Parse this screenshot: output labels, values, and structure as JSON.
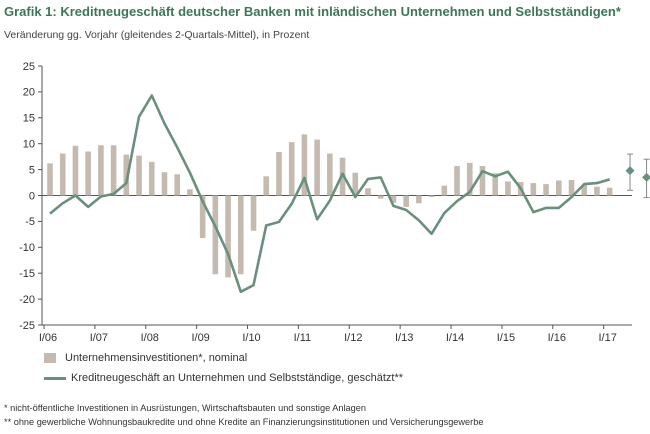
{
  "title": "Grafik 1: Kreditneugeschäft deutscher Banken mit inländischen Unternehmen und Selbstständigen*",
  "subtitle": "Veränderung gg. Vorjahr (gleitendes 2-Quartals-Mittel), in Prozent",
  "legend": {
    "bar_label": "Unternehmensinvestitionen*, nominal",
    "line_label": "Kreditneugeschäft an Unternehmen und Selbstständige, geschätzt**"
  },
  "footnotes": [
    "* nicht-öffentliche Investitionen in Ausrüstungen, Wirtschaftsbauten und sonstige Anlagen",
    "** ohne gewerbliche Wohnungsbaukredite und ohne Kredite an Finanzierungsinstitutionen und Versicherungsgewerbe"
  ],
  "colors": {
    "title": "#3f7558",
    "bar": "#c4bab0",
    "line": "#6a8f7d",
    "forecast_marker": "#6a8f7d",
    "error_bar": "#888888",
    "axis": "#555555"
  },
  "chart_data": {
    "type": "bar+line",
    "ylim": [
      -25,
      25
    ],
    "yticks": [
      -25,
      -20,
      -15,
      -10,
      -5,
      0,
      5,
      10,
      15,
      20,
      25
    ],
    "x_tick_labels": [
      "I/06",
      "I/07",
      "I/08",
      "I/09",
      "I/10",
      "I/11",
      "I/12",
      "I/13",
      "I/14",
      "I/15",
      "I/16",
      "I/17"
    ],
    "quarters_per_label": 4,
    "series": [
      {
        "name": "Unternehmensinvestitionen*, nominal",
        "kind": "bar",
        "values": [
          6.2,
          8.1,
          9.6,
          8.5,
          9.7,
          9.7,
          7.9,
          7.7,
          6.5,
          4.5,
          4.1,
          1.2,
          -8.2,
          -15.2,
          -15.8,
          -15.2,
          -6.8,
          3.7,
          8.4,
          10.3,
          11.8,
          10.8,
          8.1,
          7.3,
          4.4,
          1.4,
          -0.6,
          -1.4,
          -2.2,
          -1.5,
          -0.3,
          1.9,
          5.7,
          6.3,
          5.7,
          4.3,
          2.7,
          2.6,
          2.4,
          2.2,
          2.9,
          3.0,
          2.0,
          1.7,
          1.5
        ]
      },
      {
        "name": "Kreditneugeschäft an Unternehmen und Selbstständige, geschätzt**",
        "kind": "line",
        "values": [
          -3.5,
          -1.5,
          0.0,
          -2.2,
          -0.2,
          0.3,
          2.4,
          15.2,
          19.3,
          13.9,
          9.3,
          4.4,
          -1.1,
          -6.0,
          -11.3,
          -18.6,
          -17.3,
          -5.8,
          -5.1,
          -1.6,
          3.4,
          -4.6,
          -1.0,
          4.2,
          -0.3,
          3.2,
          3.5,
          -2.0,
          -2.8,
          -4.8,
          -7.4,
          -3.4,
          -1.1,
          0.7,
          4.7,
          3.7,
          4.6,
          1.4,
          -3.2,
          -2.4,
          -2.4,
          -0.3,
          2.2,
          2.4,
          3.1
        ]
      }
    ],
    "forecast_points": [
      {
        "position": 45.6,
        "value": 4.8,
        "low": 1.0,
        "high": 8.0
      },
      {
        "position": 46.9,
        "value": 3.5,
        "low": -0.4,
        "high": 7.0
      }
    ]
  }
}
